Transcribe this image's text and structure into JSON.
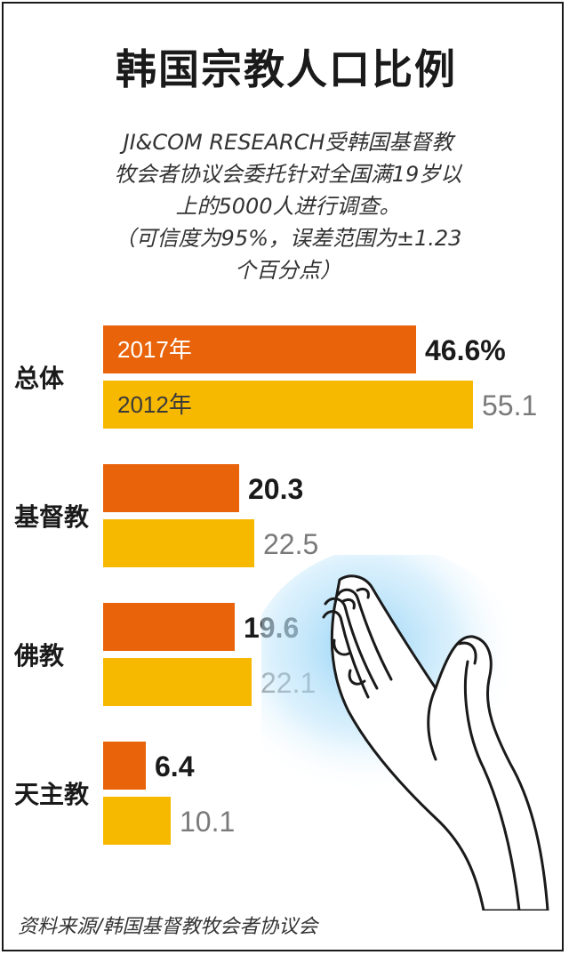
{
  "title": "韩国宗教人口比例",
  "description": [
    "JI&COM RESEARCH受韩国基督教",
    "牧会者协议会委托针对全国满19岁以",
    "上的5000人进行调查。",
    "（可信度为95%，误差范围为±1.23",
    "个百分点）"
  ],
  "source": "资料来源/韩国基督教牧会者协议会",
  "colors": {
    "y2017": "#e8630a",
    "y2012": "#f7b800"
  },
  "chart_data": {
    "type": "bar",
    "orientation": "horizontal",
    "title": "韩国宗教人口比例",
    "categories": [
      "总体",
      "基督教",
      "佛教",
      "天主教"
    ],
    "series": [
      {
        "name": "2017年",
        "values": [
          46.6,
          20.3,
          19.6,
          6.4
        ],
        "labels": [
          "46.6%",
          "20.3",
          "19.6",
          "6.4"
        ]
      },
      {
        "name": "2012年",
        "values": [
          55.1,
          22.5,
          22.1,
          10.1
        ],
        "labels": [
          "55.1",
          "22.5",
          "22.1",
          "10.1"
        ]
      }
    ],
    "xlim": [
      0,
      55.1
    ]
  }
}
